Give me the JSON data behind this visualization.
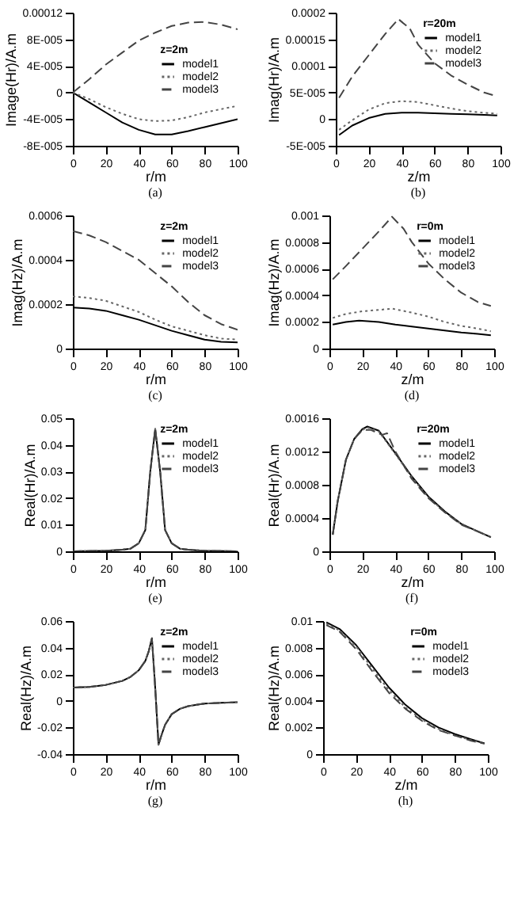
{
  "chart_data": [
    {
      "type": "line",
      "xlabel": "r/m",
      "ylabel": "Image(Hr)/A.m",
      "legend_title": "z=2m",
      "annotations": [
        "(a)"
      ],
      "legend": "right",
      "xlim": [
        0,
        100
      ],
      "xticks": [
        0,
        20,
        40,
        60,
        80,
        100
      ],
      "ylim": [
        -8e-05,
        0.00012
      ],
      "yticks": [
        {
          "value": -8e-05,
          "label": "-8E-005"
        },
        {
          "value": -4e-05,
          "label": "-4E-005"
        },
        0,
        {
          "value": 4e-05,
          "label": "4E-005"
        },
        {
          "value": 8e-05,
          "label": "8E-005"
        },
        0.00012
      ],
      "x": [
        0,
        10,
        20,
        30,
        40,
        50,
        60,
        70,
        80,
        90,
        100
      ],
      "series": [
        {
          "name": "model1",
          "color": "#000000",
          "line_style": "solid",
          "values": [
            0,
            -1.5e-05,
            -3e-05,
            -4.5e-05,
            -5.6e-05,
            -6.3e-05,
            -6.3e-05,
            -5.8e-05,
            -5.2e-05,
            -4.6e-05,
            -4e-05
          ]
        },
        {
          "name": "model2",
          "color": "#666666",
          "line_style": "dotted",
          "values": [
            0,
            -1e-05,
            -2.2e-05,
            -3.2e-05,
            -4e-05,
            -4.3e-05,
            -4.2e-05,
            -3.7e-05,
            -3e-05,
            -2.5e-05,
            -2e-05
          ]
        },
        {
          "name": "model3",
          "color": "#444444",
          "line_style": "dashed",
          "values": [
            0,
            2e-05,
            4.2e-05,
            6e-05,
            7.8e-05,
            9e-05,
            0.0001,
            0.000105,
            0.000106,
            0.000102,
            9.5e-05
          ]
        }
      ]
    },
    {
      "type": "line",
      "xlabel": "z/m",
      "ylabel": "Imag(Hr)/A.m",
      "legend_title": "r=20m",
      "annotations": [
        "(b)"
      ],
      "legend": "top right",
      "xlim": [
        0,
        100
      ],
      "xticks": [
        0,
        20,
        40,
        60,
        80,
        100
      ],
      "ylim": [
        -5e-05,
        0.0002
      ],
      "yticks": [
        {
          "value": -5e-05,
          "label": "-5E-005"
        },
        0,
        {
          "value": 5e-05,
          "label": "5E-005"
        },
        0.0001,
        0.00015,
        0.0002
      ],
      "series": [
        {
          "name": "model1",
          "color": "#000000",
          "line_style": "solid",
          "x": [
            2,
            10,
            20,
            30,
            40,
            50,
            60,
            70,
            80,
            90,
            98
          ],
          "values": [
            -3e-05,
            -1.2e-05,
            2e-06,
            1e-05,
            1.2e-05,
            1.2e-05,
            1.1e-05,
            1e-05,
            9e-06,
            8e-06,
            7e-06
          ]
        },
        {
          "name": "model2",
          "color": "#666666",
          "line_style": "dotted",
          "x": [
            2,
            10,
            20,
            30,
            40,
            50,
            60,
            70,
            80,
            90,
            98
          ],
          "values": [
            -2e-05,
            -2e-06,
            1.8e-05,
            3e-05,
            3.4e-05,
            3.2e-05,
            2.6e-05,
            2e-05,
            1.5e-05,
            1.2e-05,
            1e-05
          ]
        },
        {
          "name": "model3",
          "color": "#444444",
          "line_style": "dashed",
          "x": [
            2,
            10,
            20,
            30,
            38,
            45,
            50,
            60,
            70,
            80,
            90,
            98
          ],
          "values": [
            4e-05,
            8e-05,
            0.00012,
            0.00016,
            0.000188,
            0.00017,
            0.00014,
            0.000105,
            8.2e-05,
            6.5e-05,
            5e-05,
            4.3e-05
          ]
        }
      ]
    },
    {
      "type": "line",
      "xlabel": "r/m",
      "ylabel": "Imag(Hz)/A.m",
      "legend_title": "z=2m",
      "annotations": [
        "(c)"
      ],
      "legend": "top right",
      "xlim": [
        0,
        100
      ],
      "xticks": [
        0,
        20,
        40,
        60,
        80,
        100
      ],
      "ylim": [
        0,
        0.0006
      ],
      "yticks": [
        0,
        0.0002,
        0.0004,
        0.0006
      ],
      "x": [
        0,
        10,
        20,
        30,
        40,
        50,
        60,
        70,
        80,
        90,
        100
      ],
      "series": [
        {
          "name": "model1",
          "color": "#000000",
          "line_style": "solid",
          "values": [
            0.000185,
            0.00018,
            0.00017,
            0.00015,
            0.00013,
            0.000105,
            8e-05,
            6e-05,
            4e-05,
            3e-05,
            2.8e-05
          ]
        },
        {
          "name": "model2",
          "color": "#666666",
          "line_style": "dotted",
          "values": [
            0.000235,
            0.000228,
            0.000215,
            0.00019,
            0.000165,
            0.00013,
            0.0001,
            8e-05,
            6e-05,
            4.5e-05,
            4e-05
          ]
        },
        {
          "name": "model3",
          "color": "#444444",
          "line_style": "dashed",
          "values": [
            0.00053,
            0.00051,
            0.00048,
            0.00044,
            0.0004,
            0.00034,
            0.00028,
            0.00021,
            0.00015,
            0.00011,
            8.5e-05
          ]
        }
      ]
    },
    {
      "type": "line",
      "xlabel": "z/m",
      "ylabel": "Imag(Hz)/A.m",
      "legend_title": "r=0m",
      "annotations": [
        "(d)"
      ],
      "legend": "top right",
      "xlim": [
        0,
        100
      ],
      "xticks": [
        0,
        20,
        40,
        60,
        80,
        100
      ],
      "ylim": [
        0,
        0.001
      ],
      "yticks": [
        0,
        0.0002,
        0.0004,
        0.0006,
        0.0008,
        0.001
      ],
      "series": [
        {
          "name": "model1",
          "color": "#000000",
          "line_style": "solid",
          "x": [
            2,
            10,
            18,
            30,
            40,
            50,
            60,
            70,
            80,
            90,
            98
          ],
          "values": [
            0.00018,
            0.0002,
            0.00021,
            0.0002,
            0.00018,
            0.000165,
            0.00015,
            0.000135,
            0.00012,
            0.00011,
            0.0001
          ]
        },
        {
          "name": "model2",
          "color": "#666666",
          "line_style": "dotted",
          "x": [
            2,
            10,
            20,
            30,
            38,
            50,
            60,
            70,
            80,
            90,
            98
          ],
          "values": [
            0.00023,
            0.00026,
            0.00028,
            0.00029,
            0.0003,
            0.00027,
            0.00024,
            0.0002,
            0.00017,
            0.00015,
            0.00013
          ]
        },
        {
          "name": "model3",
          "color": "#444444",
          "line_style": "dashed",
          "x": [
            2,
            10,
            20,
            30,
            38,
            45,
            50,
            60,
            70,
            80,
            90,
            98
          ],
          "values": [
            0.00052,
            0.00062,
            0.00075,
            0.00088,
            0.00099,
            0.0009,
            0.0008,
            0.00064,
            0.00052,
            0.00042,
            0.00035,
            0.00032
          ]
        }
      ]
    },
    {
      "type": "line",
      "xlabel": "r/m",
      "ylabel": "Real(Hr)/A.m",
      "legend_title": "z=2m",
      "annotations": [
        "(e)"
      ],
      "legend": "top right",
      "xlim": [
        0,
        100
      ],
      "xticks": [
        0,
        20,
        40,
        60,
        80,
        100
      ],
      "ylim": [
        0,
        0.05
      ],
      "yticks": [
        0,
        0.01,
        0.02,
        0.03,
        0.04,
        0.05
      ],
      "x": [
        0,
        20,
        30,
        35,
        40,
        44,
        47,
        50,
        53,
        56,
        60,
        65,
        70,
        80,
        100
      ],
      "series": [
        {
          "name": "model1",
          "color": "#000000",
          "line_style": "solid",
          "values": [
            0,
            0.0002,
            0.0006,
            0.001,
            0.003,
            0.008,
            0.03,
            0.046,
            0.03,
            0.008,
            0.003,
            0.001,
            0.0006,
            0.0002,
            0
          ]
        },
        {
          "name": "model2",
          "color": "#666666",
          "line_style": "dotted",
          "values": [
            0,
            0.0002,
            0.0006,
            0.001,
            0.003,
            0.008,
            0.03,
            0.046,
            0.03,
            0.008,
            0.003,
            0.001,
            0.0006,
            0.0002,
            0
          ]
        },
        {
          "name": "model3",
          "color": "#444444",
          "line_style": "dashed",
          "values": [
            0,
            0.0002,
            0.0006,
            0.001,
            0.003,
            0.008,
            0.03,
            0.046,
            0.03,
            0.008,
            0.003,
            0.001,
            0.0006,
            0.0002,
            0
          ]
        }
      ]
    },
    {
      "type": "line",
      "xlabel": "z/m",
      "ylabel": "Real(Hr)/A.m",
      "legend_title": "r=20m",
      "annotations": [
        "(f)"
      ],
      "legend": "top right",
      "xlim": [
        0,
        100
      ],
      "xticks": [
        0,
        20,
        40,
        60,
        80,
        100
      ],
      "ylim": [
        0,
        0.0016
      ],
      "yticks": [
        0,
        0.0004,
        0.0008,
        0.0012,
        0.0016
      ],
      "series": [
        {
          "name": "model1",
          "color": "#000000",
          "line_style": "solid",
          "x": [
            2,
            5,
            10,
            15,
            20,
            23,
            30,
            40,
            50,
            60,
            70,
            80,
            90,
            98
          ],
          "values": [
            0.0002,
            0.0006,
            0.0011,
            0.00135,
            0.00147,
            0.0015,
            0.00145,
            0.00118,
            0.0009,
            0.00066,
            0.00048,
            0.00033,
            0.00024,
            0.00017
          ]
        },
        {
          "name": "model2",
          "color": "#666666",
          "line_style": "dotted",
          "x": [
            2,
            5,
            10,
            15,
            20,
            23,
            30,
            40,
            50,
            60,
            70,
            80,
            90,
            98
          ],
          "values": [
            0.0002,
            0.0006,
            0.0011,
            0.00135,
            0.00146,
            0.00149,
            0.00144,
            0.00117,
            0.00089,
            0.00065,
            0.00047,
            0.00033,
            0.00024,
            0.00017
          ]
        },
        {
          "name": "model3",
          "color": "#444444",
          "line_style": "dashed",
          "x": [
            2,
            5,
            10,
            15,
            20,
            25,
            32,
            35,
            40,
            50,
            60,
            70,
            80,
            90,
            98
          ],
          "values": [
            0.0002,
            0.0006,
            0.0011,
            0.00135,
            0.00146,
            0.00146,
            0.0014,
            0.00142,
            0.0012,
            0.00087,
            0.00064,
            0.00047,
            0.00032,
            0.00024,
            0.00017
          ]
        }
      ]
    },
    {
      "type": "line",
      "xlabel": "r/m",
      "ylabel": "Real(Hz)/A.m",
      "legend_title": "z=2m",
      "annotations": [
        "(g)"
      ],
      "legend": "top right",
      "xlim": [
        0,
        100
      ],
      "xticks": [
        0,
        20,
        40,
        60,
        80,
        100
      ],
      "ylim": [
        -0.04,
        0.06
      ],
      "yticks": [
        -0.04,
        -0.02,
        0,
        0.02,
        0.04,
        0.06
      ],
      "x": [
        0,
        10,
        20,
        30,
        35,
        40,
        44,
        46,
        48,
        50,
        52,
        54,
        56,
        60,
        65,
        70,
        80,
        90,
        100
      ],
      "series": [
        {
          "name": "model1",
          "color": "#000000",
          "line_style": "solid",
          "values": [
            0.01,
            0.0105,
            0.012,
            0.015,
            0.018,
            0.023,
            0.03,
            0.037,
            0.047,
            0.01,
            -0.033,
            -0.025,
            -0.018,
            -0.01,
            -0.006,
            -0.004,
            -0.002,
            -0.0015,
            -0.001
          ]
        },
        {
          "name": "model2",
          "color": "#666666",
          "line_style": "dotted",
          "values": [
            0.01,
            0.0105,
            0.012,
            0.015,
            0.018,
            0.023,
            0.03,
            0.037,
            0.047,
            0.01,
            -0.033,
            -0.025,
            -0.018,
            -0.01,
            -0.006,
            -0.004,
            -0.002,
            -0.0015,
            -0.001
          ]
        },
        {
          "name": "model3",
          "color": "#444444",
          "line_style": "dashed",
          "values": [
            0.01,
            0.0105,
            0.012,
            0.015,
            0.018,
            0.023,
            0.03,
            0.037,
            0.047,
            0.01,
            -0.033,
            -0.025,
            -0.018,
            -0.01,
            -0.006,
            -0.004,
            -0.002,
            -0.0015,
            -0.001
          ]
        }
      ]
    },
    {
      "type": "line",
      "xlabel": "z/m",
      "ylabel": "Real(Hz)/A.m",
      "legend_title": "r=0m",
      "annotations": [
        "(h)"
      ],
      "legend": "top right",
      "xlim": [
        0,
        100
      ],
      "xticks": [
        0,
        20,
        40,
        60,
        80,
        100
      ],
      "ylim": [
        0,
        0.01
      ],
      "yticks": [
        0,
        0.002,
        0.004,
        0.006,
        0.008,
        0.01
      ],
      "x": [
        2,
        10,
        20,
        30,
        40,
        50,
        60,
        70,
        80,
        90,
        98
      ],
      "series": [
        {
          "name": "model1",
          "color": "#000000",
          "line_style": "solid",
          "values": [
            0.0099,
            0.0094,
            0.0082,
            0.0066,
            0.005,
            0.0037,
            0.0027,
            0.002,
            0.0015,
            0.0011,
            0.0008
          ]
        },
        {
          "name": "model2",
          "color": "#666666",
          "line_style": "dotted",
          "values": [
            0.0098,
            0.0093,
            0.0081,
            0.0064,
            0.0048,
            0.0035,
            0.0026,
            0.0019,
            0.0014,
            0.00105,
            0.0008
          ]
        },
        {
          "name": "model3",
          "color": "#444444",
          "line_style": "dashed",
          "values": [
            0.0097,
            0.0092,
            0.0079,
            0.0062,
            0.0046,
            0.0034,
            0.0025,
            0.0018,
            0.0014,
            0.001,
            0.00078
          ]
        }
      ]
    }
  ]
}
